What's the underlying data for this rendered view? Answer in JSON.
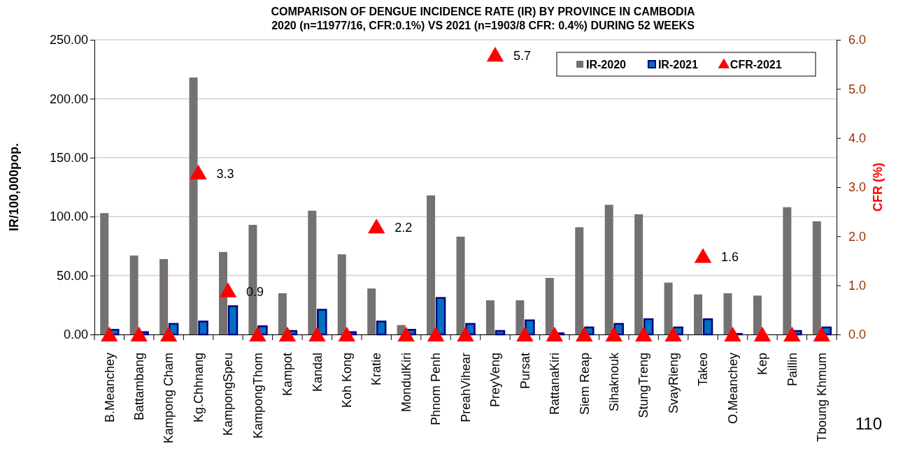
{
  "chart_data": {
    "type": "bar",
    "title": "COMPARISON OF DENGUE INCIDENCE RATE (IR) BY PROVINCE IN CAMBODIA",
    "subtitle": "2020 (n=11977/16, CFR:0.1%) VS 2021 (n=1903/8 CFR: 0.4%) DURING 52 WEEKS",
    "ylabel": "IR/100,000pop.",
    "y2label": "CFR (%)",
    "categories": [
      "B.Meanchey",
      "Battambang",
      "Kampong Cham",
      "Kg.Chhnang",
      "KampongSpeu",
      "KampongThom",
      "Kampot",
      "Kandal",
      "Koh Kong",
      "Kratie",
      "MondulKiri",
      "Phnom Penh",
      "PreahVihear",
      "PreyVeng",
      "Pursat",
      "RattanaKiri",
      "Siem Reap",
      "Sihaknouk",
      "StungTreng",
      "SvayRieng",
      "Takeo",
      "O.Meanchey",
      "Kep",
      "Paillin",
      "Tboung Khmum"
    ],
    "series": [
      {
        "name": "IR-2020",
        "color": "#767171",
        "values": [
          103,
          67,
          64,
          218,
          70,
          93,
          35,
          105,
          68,
          39,
          8,
          118,
          83,
          29,
          29,
          48,
          91,
          110,
          102,
          44,
          34,
          35,
          33,
          108,
          96
        ]
      },
      {
        "name": "IR-2021",
        "color": "#0070c0",
        "values": [
          4,
          2,
          9,
          11,
          24,
          7,
          3,
          21,
          2,
          11,
          4,
          31,
          9,
          3,
          12,
          1,
          6,
          9,
          13,
          6,
          13,
          0.5,
          0,
          3,
          6
        ]
      },
      {
        "name": "CFR-2021",
        "type": "scatter",
        "axis": "y2",
        "color": "#ff0000",
        "marker": "triangle",
        "values": [
          0,
          0,
          0,
          3.3,
          0.9,
          0,
          0,
          0,
          0,
          2.2,
          0,
          0,
          0,
          5.7,
          0,
          0,
          0,
          0,
          0,
          0,
          1.6,
          0,
          0,
          0,
          0
        ],
        "value_labels": [
          null,
          null,
          null,
          "3.3",
          "0.9",
          null,
          null,
          null,
          null,
          "2.2",
          null,
          null,
          null,
          "5.7",
          null,
          null,
          null,
          null,
          null,
          null,
          "1.6",
          null,
          null,
          null,
          null
        ]
      }
    ],
    "ylim": [
      0,
      250
    ],
    "yticks": [
      {
        "value": 0,
        "label": "0.00"
      },
      {
        "value": 50,
        "label": "50.00"
      },
      {
        "value": 100,
        "label": "100.00"
      },
      {
        "value": 150,
        "label": "150.00"
      },
      {
        "value": 200,
        "label": "200.00"
      },
      {
        "value": 250,
        "label": "250.00"
      }
    ],
    "y2lim": [
      0,
      6
    ],
    "y2ticks": [
      {
        "value": 0,
        "label": "0.0"
      },
      {
        "value": 1,
        "label": "1.0"
      },
      {
        "value": 2,
        "label": "2.0"
      },
      {
        "value": 3,
        "label": "3.0"
      },
      {
        "value": 4,
        "label": "4.0"
      },
      {
        "value": 5,
        "label": "5.0"
      },
      {
        "value": 6,
        "label": "6.0"
      }
    ],
    "grid": "y",
    "legend": "top right",
    "annotations": [
      "110"
    ]
  }
}
